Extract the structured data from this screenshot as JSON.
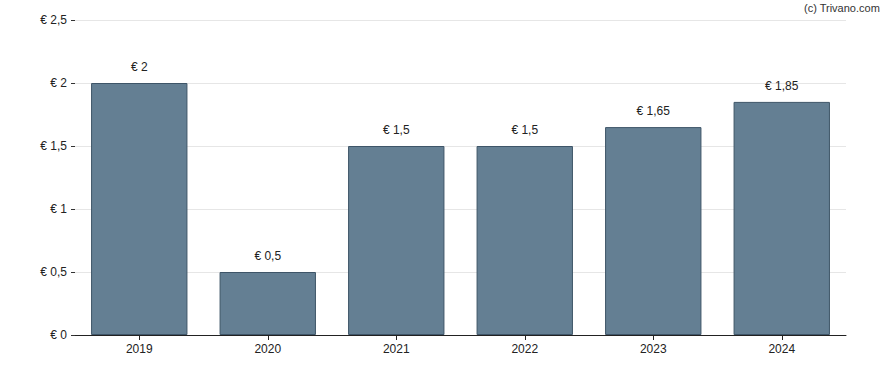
{
  "chart_data": {
    "type": "bar",
    "annotations": [
      "(c) Trivano.com"
    ],
    "categories": [
      "2019",
      "2020",
      "2021",
      "2022",
      "2023",
      "2024"
    ],
    "values": [
      2,
      0.5,
      1.5,
      1.5,
      1.65,
      1.85
    ],
    "value_labels": [
      "€ 2",
      "€ 0,5",
      "€ 1,5",
      "€ 1,5",
      "€ 1,65",
      "€ 1,85"
    ],
    "data_labels": true,
    "color": "#647f93",
    "ylim": [
      0,
      2.5
    ],
    "yticks": [
      {
        "value": 0,
        "label": "€ 0"
      },
      {
        "value": 0.5,
        "label": "€ 0,5"
      },
      {
        "value": 1,
        "label": "€ 1"
      },
      {
        "value": 1.5,
        "label": "€ 1,5"
      },
      {
        "value": 2,
        "label": "€ 2"
      },
      {
        "value": 2.5,
        "label": "€ 2,5"
      }
    ],
    "grid": true
  }
}
